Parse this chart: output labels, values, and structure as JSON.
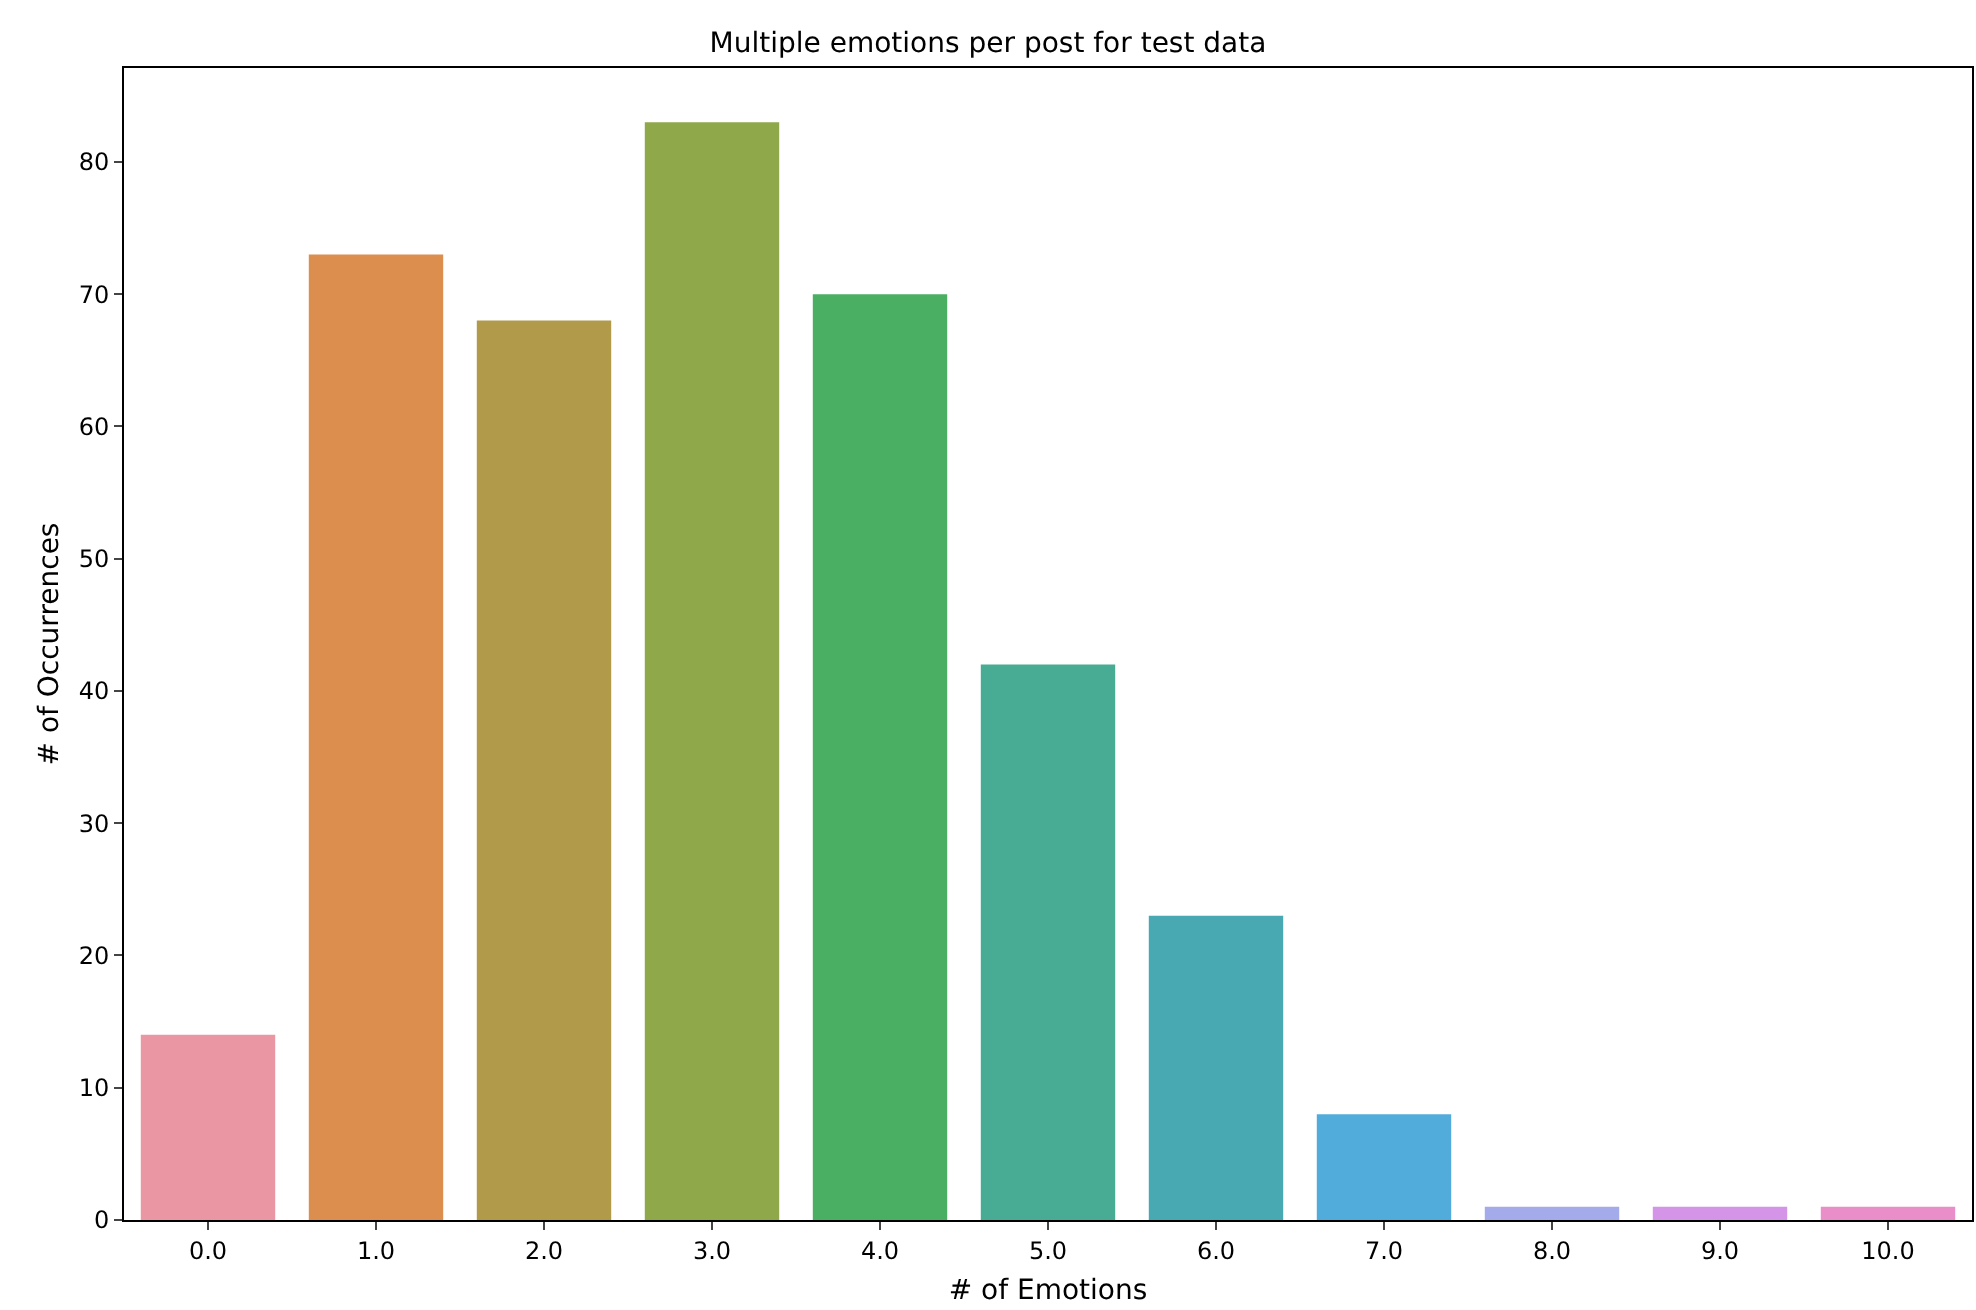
{
  "chart_data": {
    "type": "bar",
    "title": "Multiple emotions per post for test data",
    "xlabel": "# of Emotions",
    "ylabel": "# of Occurrences",
    "categories": [
      "0.0",
      "1.0",
      "2.0",
      "3.0",
      "4.0",
      "5.0",
      "6.0",
      "7.0",
      "8.0",
      "9.0",
      "10.0"
    ],
    "values": [
      14,
      73,
      68,
      83,
      70,
      42,
      23,
      8,
      1,
      1,
      1
    ],
    "colors": [
      "#ea96a3",
      "#dc8e4f",
      "#b19a4a",
      "#8ea84a",
      "#4aaf62",
      "#48ab94",
      "#48a9b3",
      "#52acdb",
      "#a3abeb",
      "#d494e8",
      "#e98ec8"
    ],
    "ylim": [
      0,
      87.1
    ],
    "yticks": [
      0,
      10,
      20,
      30,
      40,
      50,
      60,
      70,
      80
    ]
  }
}
